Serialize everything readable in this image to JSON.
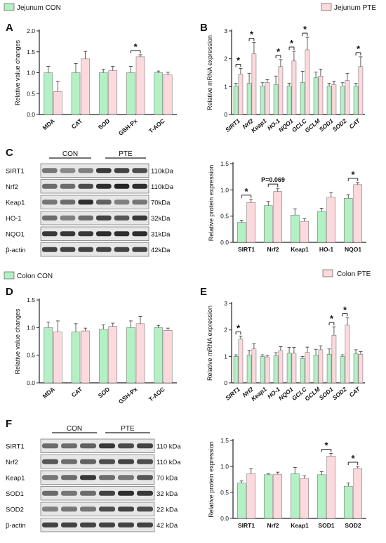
{
  "colors": {
    "con": "#b3f0c4",
    "pte": "#fcd9dc",
    "axis": "#222222",
    "error": "#333333",
    "band": "#1a1a1a",
    "blot_bg": "#e6e6e6"
  },
  "legends": {
    "top_con": "Jejunum CON",
    "top_pte": "Jejunum PTE",
    "bottom_con": "Colon CON",
    "bottom_pte": "Colon PTE"
  },
  "panel_letters": [
    "A",
    "B",
    "C",
    "D",
    "E",
    "F"
  ],
  "blots": {
    "C": {
      "groups": [
        "CON",
        "PTE"
      ],
      "proteins": [
        "SIRT1",
        "Nrf2",
        "Keap1",
        "HO-1",
        "NQO1",
        "β-actin"
      ],
      "sizes": [
        "110kDa",
        "110kDa",
        "70kDa",
        "32kDa",
        "31kDa",
        "42kDa"
      ]
    },
    "F": {
      "groups": [
        "CON",
        "PTE"
      ],
      "proteins": [
        "SIRT1",
        "Nrf2",
        "Keap1",
        "SOD1",
        "SOD2",
        "β-actin"
      ],
      "sizes": [
        "110 kDa",
        "110 kDa",
        "70 kDa",
        "32 kDa",
        "22 kDa",
        "42 kDa"
      ]
    }
  },
  "chart_data": [
    {
      "id": "A",
      "type": "bar",
      "ylabel": "Relative value changes",
      "ylim": [
        0,
        2.0
      ],
      "yticks": [
        0.0,
        0.5,
        1.0,
        1.5,
        2.0
      ],
      "categories": [
        "MDA",
        "CAT",
        "SOD",
        "GSH-Px",
        "T-AOC"
      ],
      "series": [
        {
          "group": "con",
          "values": [
            1.0,
            1.0,
            1.0,
            1.0,
            1.0
          ],
          "errors": [
            0.15,
            0.22,
            0.08,
            0.15,
            0.04
          ]
        },
        {
          "group": "pte",
          "values": [
            0.55,
            1.33,
            1.05,
            1.38,
            0.95
          ],
          "errors": [
            0.25,
            0.18,
            0.1,
            0.05,
            0.06
          ]
        }
      ],
      "significance": [
        {
          "index": 3,
          "label": "*"
        }
      ]
    },
    {
      "id": "B",
      "type": "bar",
      "ylabel": "Relative mRNA expression",
      "ylim": [
        0,
        3
      ],
      "yticks": [
        0,
        1,
        2,
        3
      ],
      "categories": [
        "SIRT1",
        "Nrf2",
        "Keap1",
        "HO-1",
        "NQO1",
        "GCLC",
        "GCLM",
        "SOD1",
        "SOD2",
        "CAT"
      ],
      "series": [
        {
          "group": "con",
          "values": [
            1.02,
            1.12,
            1.02,
            1.08,
            1.02,
            1.15,
            1.32,
            1.02,
            1.02,
            1.02
          ],
          "errors": [
            0.1,
            0.35,
            0.12,
            0.3,
            0.1,
            0.4,
            0.2,
            0.1,
            0.12,
            0.1
          ]
        },
        {
          "group": "pte",
          "values": [
            1.45,
            2.18,
            1.15,
            1.72,
            1.92,
            2.32,
            1.38,
            1.08,
            1.22,
            1.72
          ],
          "errors": [
            0.2,
            0.4,
            0.1,
            0.25,
            0.35,
            0.45,
            0.25,
            0.12,
            0.25,
            0.35
          ]
        }
      ],
      "significance": [
        {
          "index": 0,
          "label": "*"
        },
        {
          "index": 1,
          "label": "*"
        },
        {
          "index": 3,
          "label": "*"
        },
        {
          "index": 4,
          "label": "*"
        },
        {
          "index": 5,
          "label": "*"
        },
        {
          "index": 9,
          "label": "*"
        }
      ]
    },
    {
      "id": "C",
      "type": "bar",
      "ylabel": "Relative protein expression",
      "ylim": [
        0,
        1.5
      ],
      "yticks": [
        0.0,
        0.5,
        1.0,
        1.5
      ],
      "categories": [
        "SIRT1",
        "Nrf2",
        "Keap1",
        "HO-1",
        "NQO1"
      ],
      "series": [
        {
          "group": "con",
          "values": [
            0.38,
            0.7,
            0.52,
            0.59,
            0.84
          ],
          "errors": [
            0.04,
            0.08,
            0.12,
            0.06,
            0.07
          ]
        },
        {
          "group": "pte",
          "values": [
            0.76,
            0.97,
            0.4,
            0.86,
            1.1
          ],
          "errors": [
            0.06,
            0.06,
            0.05,
            0.09,
            0.04
          ]
        }
      ],
      "significance": [
        {
          "index": 0,
          "label": "*"
        },
        {
          "index": 1,
          "label": "P=0.069"
        },
        {
          "index": 4,
          "label": "*"
        }
      ]
    },
    {
      "id": "D",
      "type": "bar",
      "ylabel": "Relative value changes",
      "ylim": [
        0,
        1.5
      ],
      "yticks": [
        0.0,
        0.5,
        1.0,
        1.5
      ],
      "categories": [
        "MDA",
        "CAT",
        "SOD",
        "GSH-Px",
        "T-AOC"
      ],
      "series": [
        {
          "group": "con",
          "values": [
            1.0,
            0.92,
            0.97,
            1.0,
            1.0
          ],
          "errors": [
            0.1,
            0.15,
            0.08,
            0.12,
            0.04
          ]
        },
        {
          "group": "pte",
          "values": [
            0.92,
            0.94,
            1.02,
            1.07,
            0.95
          ],
          "errors": [
            0.2,
            0.05,
            0.06,
            0.13,
            0.04
          ]
        }
      ],
      "significance": []
    },
    {
      "id": "E",
      "type": "bar",
      "ylabel": "Relative mRNA expression",
      "ylim": [
        0,
        3
      ],
      "yticks": [
        0,
        1,
        2,
        3
      ],
      "categories": [
        "SIRT1",
        "Nrf2",
        "Keap1",
        "HO-1",
        "NQO1",
        "GCLC",
        "GCLM",
        "SOD1",
        "SOD2",
        "CAT"
      ],
      "series": [
        {
          "group": "con",
          "values": [
            1.0,
            1.05,
            1.0,
            1.02,
            1.12,
            0.92,
            1.05,
            1.08,
            1.0,
            1.1
          ],
          "errors": [
            0.06,
            0.18,
            0.06,
            0.12,
            0.22,
            0.08,
            0.22,
            0.2,
            0.06,
            0.15
          ]
        },
        {
          "group": "pte",
          "values": [
            1.65,
            1.28,
            0.98,
            1.22,
            1.12,
            1.15,
            1.25,
            1.8,
            2.18,
            1.08
          ],
          "errors": [
            0.12,
            0.2,
            0.06,
            0.15,
            0.22,
            0.2,
            0.15,
            0.32,
            0.28,
            0.1
          ]
        }
      ],
      "significance": [
        {
          "index": 0,
          "label": "*"
        },
        {
          "index": 7,
          "label": "*"
        },
        {
          "index": 8,
          "label": "*"
        }
      ]
    },
    {
      "id": "F",
      "type": "bar",
      "ylabel": "Relative protein expression",
      "ylim": [
        0,
        1.5
      ],
      "yticks": [
        0.0,
        0.5,
        1.0,
        1.5
      ],
      "categories": [
        "SIRT1",
        "Nrf2",
        "Keap1",
        "SOD1",
        "SOD2"
      ],
      "series": [
        {
          "group": "con",
          "values": [
            0.68,
            0.84,
            0.86,
            0.84,
            0.62
          ],
          "errors": [
            0.04,
            0.02,
            0.12,
            0.06,
            0.06
          ]
        },
        {
          "group": "pte",
          "values": [
            0.86,
            0.85,
            0.77,
            1.2,
            0.96
          ],
          "errors": [
            0.1,
            0.04,
            0.05,
            0.05,
            0.04
          ]
        }
      ],
      "significance": [
        {
          "index": 3,
          "label": "*"
        },
        {
          "index": 4,
          "label": "*"
        }
      ]
    }
  ]
}
